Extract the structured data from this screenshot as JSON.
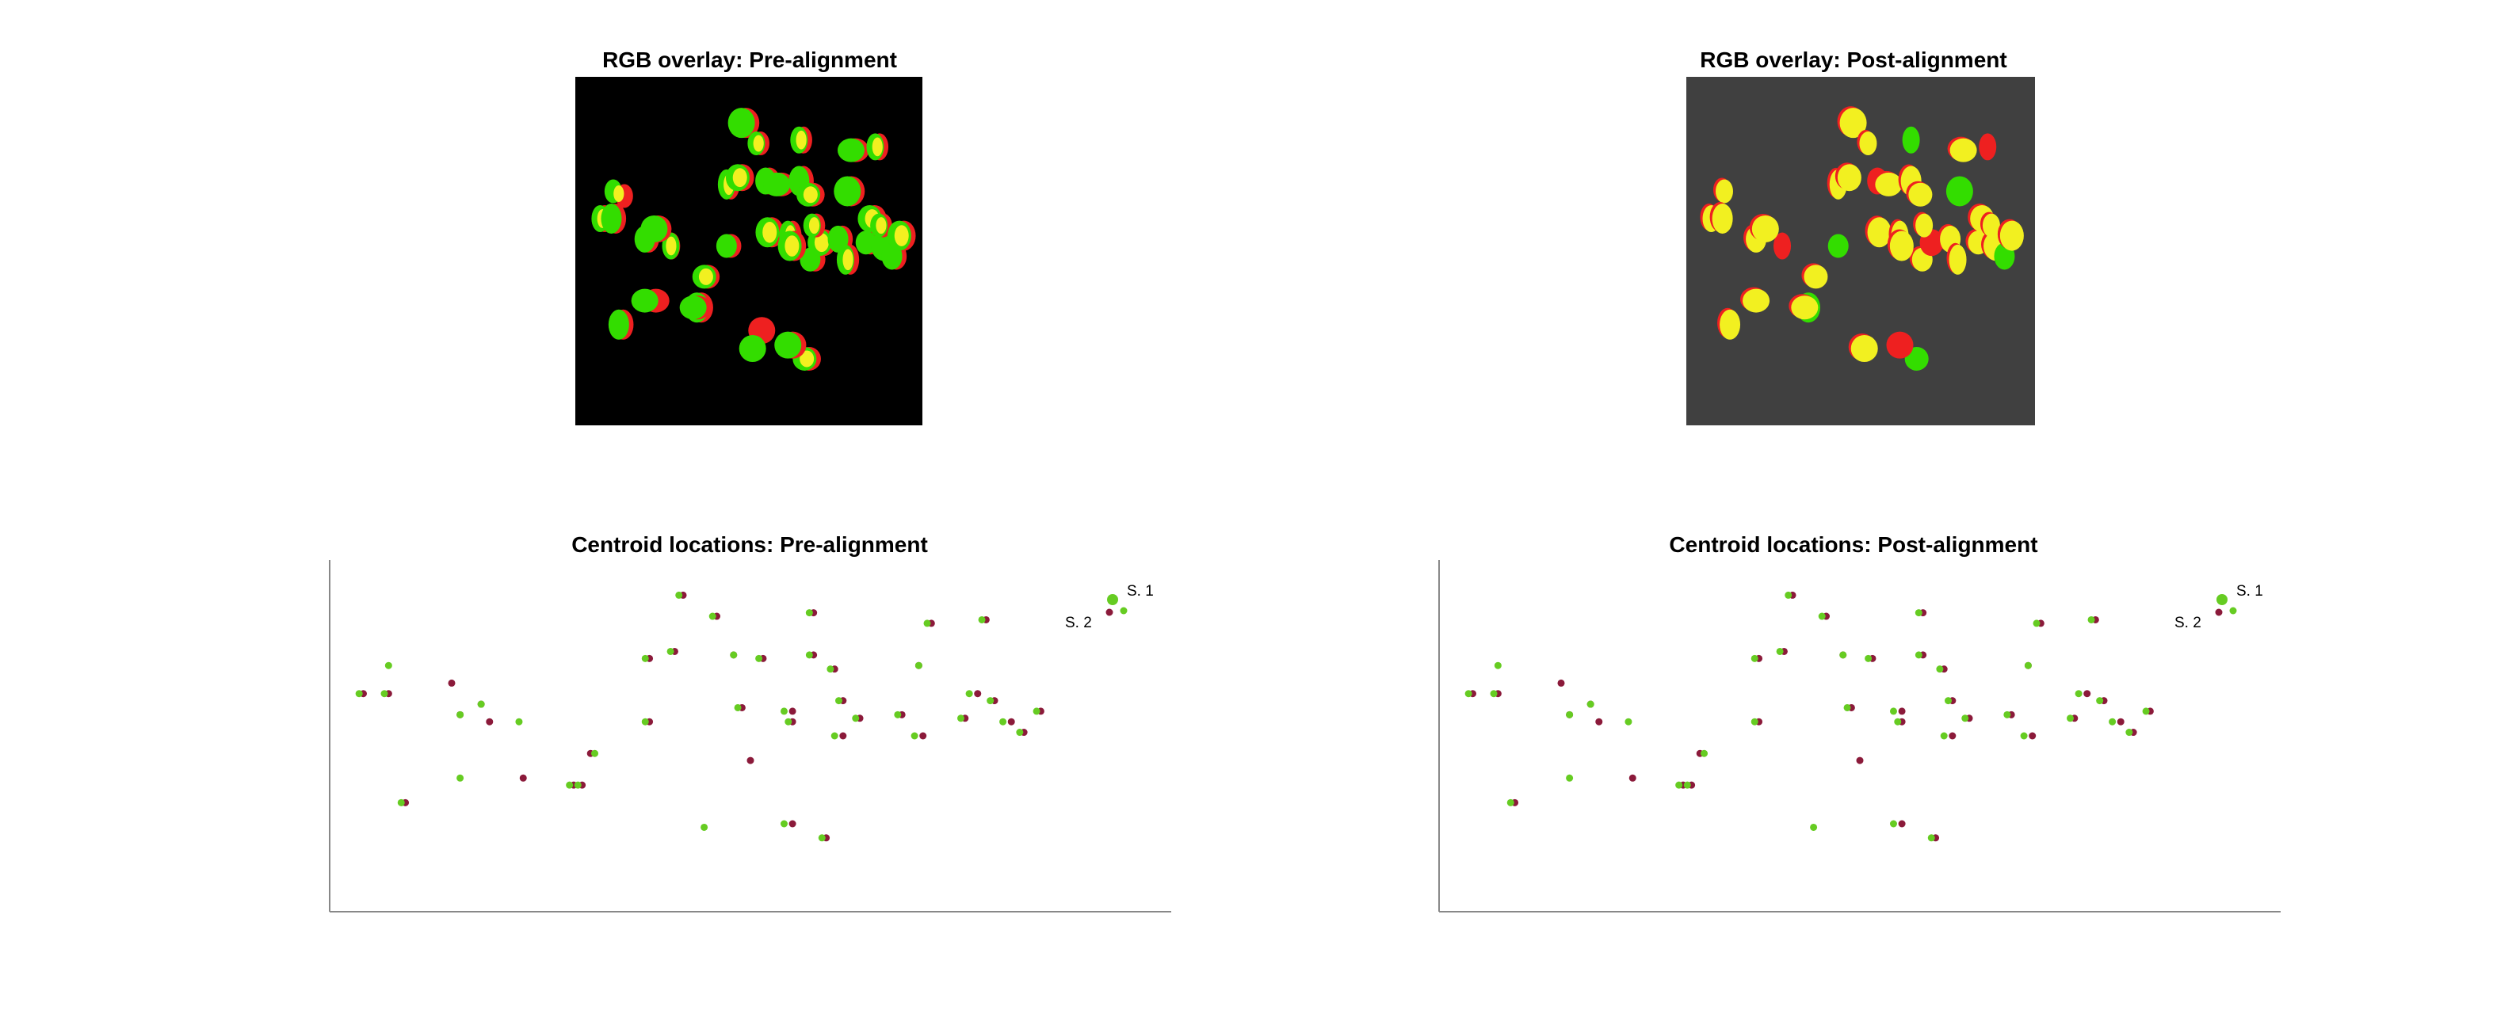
{
  "colors": {
    "green": "#33dd00",
    "red": "#ee2020",
    "yellow": "#f2f020",
    "dark_red": "#8b1a3a",
    "point_green": "#66cc22",
    "pre_bg": "#000000",
    "post_bg": "#404040",
    "axis": "#888888"
  },
  "chart_data": [
    {
      "type": "image",
      "title": "RGB overlay: Pre-alignment",
      "background": "black"
    },
    {
      "type": "image",
      "title": "RGB overlay: Post-alignment",
      "background": "dark-gray"
    },
    {
      "type": "scatter",
      "title": "Centroid locations: Pre-alignment",
      "xlabel": "",
      "ylabel": "",
      "xlim": [
        0,
        1
      ],
      "ylim": [
        0,
        1
      ],
      "grid": false,
      "legend": [
        "S. 1",
        "S. 2"
      ],
      "legend_position": "top-right",
      "series": [
        {
          "name": "S. 1",
          "x": [
            0.07,
            0.155,
            0.295,
            0.155,
            0.225,
            0.085,
            0.315,
            0.18,
            0.375,
            0.375,
            0.405,
            0.415,
            0.455,
            0.48,
            0.485,
            0.51,
            0.57,
            0.57,
            0.595,
            0.445,
            0.54,
            0.6,
            0.625,
            0.7,
            0.605,
            0.675,
            0.545,
            0.285,
            0.035,
            0.065,
            0.585,
            0.54,
            0.695,
            0.75,
            0.76,
            0.8,
            0.785,
            0.82,
            0.84,
            0.71,
            0.775
          ],
          "y": [
            0.7,
            0.56,
            0.36,
            0.38,
            0.54,
            0.31,
            0.45,
            0.59,
            0.72,
            0.54,
            0.74,
            0.9,
            0.84,
            0.73,
            0.58,
            0.72,
            0.85,
            0.73,
            0.69,
            0.24,
            0.57,
            0.5,
            0.55,
            0.7,
            0.6,
            0.56,
            0.54,
            0.36,
            0.62,
            0.62,
            0.21,
            0.25,
            0.5,
            0.55,
            0.62,
            0.54,
            0.6,
            0.51,
            0.57,
            0.82,
            0.83
          ]
        },
        {
          "name": "S. 2",
          "x": [
            0.145,
            0.155,
            0.3,
            0.23,
            0.19,
            0.09,
            0.31,
            0.18,
            0.38,
            0.38,
            0.41,
            0.42,
            0.46,
            0.48,
            0.49,
            0.515,
            0.575,
            0.575,
            0.6,
            0.5,
            0.55,
            0.61,
            0.63,
            0.7,
            0.61,
            0.68,
            0.55,
            0.29,
            0.04,
            0.07,
            0.59,
            0.55,
            0.705,
            0.755,
            0.77,
            0.81,
            0.79,
            0.825,
            0.845,
            0.715,
            0.78
          ],
          "y": [
            0.65,
            0.56,
            0.36,
            0.38,
            0.54,
            0.31,
            0.45,
            0.59,
            0.72,
            0.54,
            0.74,
            0.9,
            0.84,
            0.73,
            0.58,
            0.72,
            0.85,
            0.73,
            0.69,
            0.43,
            0.57,
            0.5,
            0.55,
            0.7,
            0.6,
            0.56,
            0.54,
            0.36,
            0.62,
            0.62,
            0.21,
            0.25,
            0.5,
            0.55,
            0.62,
            0.54,
            0.6,
            0.51,
            0.57,
            0.82,
            0.83
          ]
        }
      ]
    },
    {
      "type": "scatter",
      "title": "Centroid locations: Post-alignment",
      "xlabel": "",
      "ylabel": "",
      "xlim": [
        0,
        1
      ],
      "ylim": [
        0,
        1
      ],
      "grid": false,
      "legend": [
        "S. 1",
        "S. 2"
      ],
      "legend_position": "top-right",
      "series": [
        {
          "name": "S. 1",
          "x": [
            0.07,
            0.155,
            0.295,
            0.155,
            0.225,
            0.085,
            0.315,
            0.18,
            0.375,
            0.375,
            0.405,
            0.415,
            0.455,
            0.48,
            0.485,
            0.51,
            0.57,
            0.57,
            0.595,
            0.445,
            0.54,
            0.6,
            0.625,
            0.7,
            0.605,
            0.675,
            0.545,
            0.285,
            0.035,
            0.065,
            0.585,
            0.54,
            0.695,
            0.75,
            0.76,
            0.8,
            0.785,
            0.82,
            0.84,
            0.71,
            0.775
          ],
          "y": [
            0.7,
            0.56,
            0.36,
            0.38,
            0.54,
            0.31,
            0.45,
            0.59,
            0.72,
            0.54,
            0.74,
            0.9,
            0.84,
            0.73,
            0.58,
            0.72,
            0.85,
            0.73,
            0.69,
            0.24,
            0.57,
            0.5,
            0.55,
            0.7,
            0.6,
            0.56,
            0.54,
            0.36,
            0.62,
            0.62,
            0.21,
            0.25,
            0.5,
            0.55,
            0.62,
            0.54,
            0.6,
            0.51,
            0.57,
            0.82,
            0.83
          ]
        },
        {
          "name": "S. 2",
          "x": [
            0.145,
            0.155,
            0.3,
            0.23,
            0.19,
            0.09,
            0.31,
            0.18,
            0.38,
            0.38,
            0.41,
            0.42,
            0.46,
            0.48,
            0.49,
            0.515,
            0.575,
            0.575,
            0.6,
            0.5,
            0.55,
            0.61,
            0.63,
            0.7,
            0.61,
            0.68,
            0.55,
            0.29,
            0.04,
            0.07,
            0.59,
            0.55,
            0.705,
            0.755,
            0.77,
            0.81,
            0.79,
            0.825,
            0.845,
            0.715,
            0.78
          ],
          "y": [
            0.65,
            0.56,
            0.36,
            0.38,
            0.54,
            0.31,
            0.45,
            0.59,
            0.72,
            0.54,
            0.74,
            0.9,
            0.84,
            0.73,
            0.58,
            0.72,
            0.85,
            0.73,
            0.69,
            0.43,
            0.57,
            0.5,
            0.55,
            0.7,
            0.6,
            0.56,
            0.54,
            0.36,
            0.62,
            0.62,
            0.21,
            0.25,
            0.5,
            0.55,
            0.62,
            0.54,
            0.6,
            0.51,
            0.57,
            0.82,
            0.83
          ]
        }
      ]
    }
  ]
}
